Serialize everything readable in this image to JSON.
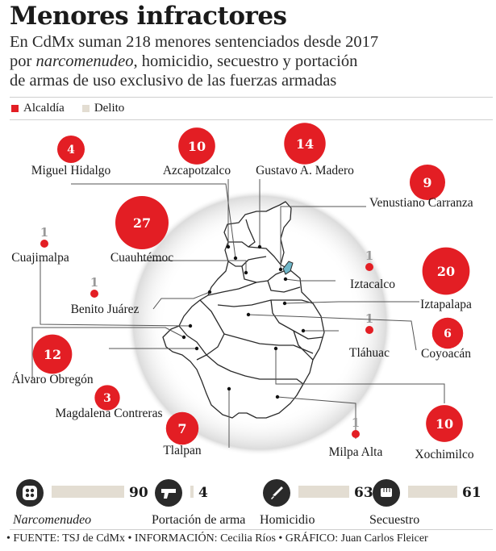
{
  "title": "Menores infractores",
  "subtitle": {
    "line1": "En CdMx suman 218 menores sentenciados desde 2017",
    "line2_pre": "por ",
    "line2_em": "narcomenudeo",
    "line2_post": ", homicidio, secuestro y portación",
    "line3": "de armas de uso exclusivo de las fuerzas armadas"
  },
  "legend": {
    "items": [
      {
        "label": "Alcaldía",
        "color": "#e31e24"
      },
      {
        "label": "Delito",
        "color": "#e3ddd2"
      }
    ]
  },
  "colors": {
    "accent": "#e31e24",
    "bar": "#e3ddd2",
    "map_fill": "#ffffff",
    "map_stroke": "#2a2a2a",
    "highlight": "#6fb7c9",
    "icon_bg": "#2a2a2a"
  },
  "chart_data": [
    {
      "type": "bubble-map",
      "series_name": "Alcaldía",
      "categories": [
        "Miguel Hidalgo",
        "Azcapotzalco",
        "Gustavo A. Madero",
        "Venustiano Carranza",
        "Cuajimalpa",
        "Cuauhtémoc",
        "Iztacalco",
        "Iztapalapa",
        "Benito Juárez",
        "Tláhuac",
        "Coyoacán",
        "Álvaro Obregón",
        "Magdalena Contreras",
        "Tlalpan",
        "Milpa Alta",
        "Xochimilco"
      ],
      "values": [
        4,
        10,
        14,
        9,
        1,
        27,
        1,
        20,
        1,
        1,
        6,
        12,
        3,
        7,
        1,
        10
      ]
    },
    {
      "type": "bar",
      "series_name": "Delito",
      "categories": [
        "Narcomenudeo",
        "Portación de arma",
        "Homicidio",
        "Secuestro"
      ],
      "values": [
        90,
        4,
        63,
        61
      ],
      "icons": [
        "dots-icon",
        "gun-icon",
        "knife-icon",
        "fist-icon"
      ],
      "label_italic": [
        true,
        false,
        false,
        false
      ]
    }
  ],
  "source": "• FUENTE: TSJ de CdMx • INFORMACIÓN: Cecilia Ríos • GRÁFICO: Juan Carlos Fleicer"
}
